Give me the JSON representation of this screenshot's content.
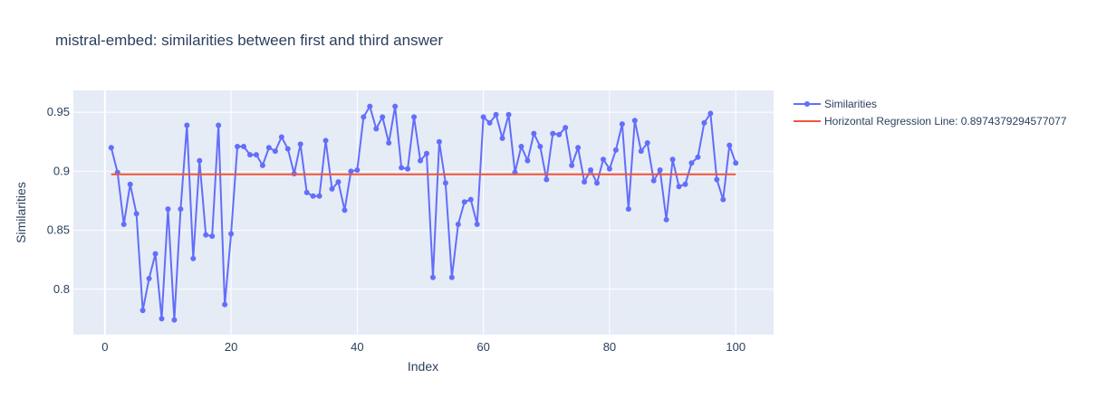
{
  "chart_data": {
    "type": "line",
    "title": "mistral-embed: similarities between first and third answer",
    "xlabel": "Index",
    "ylabel": "Similarities",
    "xlim": [
      -5,
      106
    ],
    "ylim": [
      0.7615,
      0.9685
    ],
    "x_ticks": [
      0,
      20,
      40,
      60,
      80,
      100
    ],
    "x_tick_labels": [
      "0",
      "20",
      "40",
      "60",
      "80",
      "100"
    ],
    "y_ticks": [
      0.8,
      0.85,
      0.9,
      0.95
    ],
    "y_tick_labels": [
      "0.8",
      "0.85",
      "0.9",
      "0.95"
    ],
    "grid": true,
    "legend_position": "top-right",
    "series": [
      {
        "name": "Similarities",
        "color": "#636efa",
        "mode": "lines+markers",
        "x": [
          1,
          2,
          3,
          4,
          5,
          6,
          7,
          8,
          9,
          10,
          11,
          12,
          13,
          14,
          15,
          16,
          17,
          18,
          19,
          20,
          21,
          22,
          23,
          24,
          25,
          26,
          27,
          28,
          29,
          30,
          31,
          32,
          33,
          34,
          35,
          36,
          37,
          38,
          39,
          40,
          41,
          42,
          43,
          44,
          45,
          46,
          47,
          48,
          49,
          50,
          51,
          52,
          53,
          54,
          55,
          56,
          57,
          58,
          59,
          60,
          61,
          62,
          63,
          64,
          65,
          66,
          67,
          68,
          69,
          70,
          71,
          72,
          73,
          74,
          75,
          76,
          77,
          78,
          79,
          80,
          81,
          82,
          83,
          84,
          85,
          86,
          87,
          88,
          89,
          90,
          91,
          92,
          93,
          94,
          95,
          96,
          97,
          98,
          99,
          100
        ],
        "y": [
          0.92,
          0.899,
          0.855,
          0.889,
          0.864,
          0.782,
          0.809,
          0.83,
          0.775,
          0.868,
          0.774,
          0.868,
          0.939,
          0.826,
          0.909,
          0.846,
          0.845,
          0.939,
          0.787,
          0.847,
          0.921,
          0.921,
          0.914,
          0.914,
          0.905,
          0.92,
          0.917,
          0.929,
          0.919,
          0.898,
          0.923,
          0.882,
          0.879,
          0.879,
          0.926,
          0.885,
          0.891,
          0.867,
          0.9,
          0.901,
          0.946,
          0.955,
          0.936,
          0.946,
          0.924,
          0.955,
          0.903,
          0.902,
          0.946,
          0.909,
          0.915,
          0.81,
          0.925,
          0.89,
          0.81,
          0.855,
          0.874,
          0.876,
          0.855,
          0.946,
          0.941,
          0.948,
          0.928,
          0.948,
          0.899,
          0.921,
          0.909,
          0.932,
          0.921,
          0.893,
          0.932,
          0.931,
          0.937,
          0.905,
          0.92,
          0.891,
          0.901,
          0.89,
          0.91,
          0.902,
          0.918,
          0.94,
          0.868,
          0.943,
          0.917,
          0.924,
          0.892,
          0.901,
          0.859,
          0.91,
          0.887,
          0.889,
          0.907,
          0.912,
          0.941,
          0.949,
          0.893,
          0.876,
          0.922,
          0.907
        ]
      },
      {
        "name": "Horizontal Regression Line: 0.8974379294577077",
        "color": "#ef553b",
        "mode": "lines",
        "x": [
          1,
          100
        ],
        "y": [
          0.8974379294577077,
          0.8974379294577077
        ]
      }
    ]
  }
}
